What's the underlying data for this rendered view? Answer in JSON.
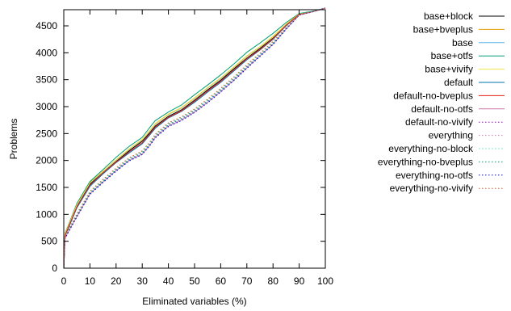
{
  "chart_data": {
    "type": "line",
    "xlabel": "Eliminated variables (%)",
    "ylabel": "Problems",
    "xlim": [
      0,
      100
    ],
    "ylim": [
      0,
      4800
    ],
    "xticks": [
      0,
      10,
      20,
      30,
      40,
      50,
      60,
      70,
      80,
      90,
      100
    ],
    "yticks": [
      0,
      500,
      1000,
      1500,
      2000,
      2500,
      3000,
      3500,
      4000,
      4500
    ],
    "grid": false,
    "legend_position": "outside-right",
    "series": [
      {
        "name": "base+block",
        "color": "#000000",
        "dash": "solid",
        "x": [
          0,
          0.5,
          2,
          5,
          10,
          15,
          20,
          25,
          30,
          33,
          35,
          40,
          45,
          50,
          55,
          60,
          65,
          70,
          75,
          80,
          85,
          90,
          95,
          100
        ],
        "y": [
          0,
          620,
          800,
          1150,
          1560,
          1780,
          1980,
          2180,
          2360,
          2520,
          2640,
          2820,
          2940,
          3120,
          3310,
          3490,
          3700,
          3900,
          4080,
          4280,
          4520,
          4720,
          4760,
          4830
        ]
      },
      {
        "name": "base+bveplus",
        "color": "#e69f00",
        "dash": "solid",
        "x": [
          0,
          0.5,
          2,
          5,
          10,
          15,
          20,
          25,
          30,
          33,
          35,
          40,
          45,
          50,
          55,
          60,
          65,
          70,
          75,
          80,
          85,
          90,
          95,
          100
        ],
        "y": [
          0,
          640,
          820,
          1180,
          1590,
          1800,
          2010,
          2210,
          2390,
          2560,
          2680,
          2860,
          2980,
          3160,
          3350,
          3530,
          3730,
          3940,
          4110,
          4300,
          4530,
          4720,
          4760,
          4830
        ]
      },
      {
        "name": "base",
        "color": "#56b4e9",
        "dash": "solid",
        "x": [
          0,
          0.5,
          2,
          5,
          10,
          15,
          20,
          25,
          30,
          33,
          35,
          40,
          45,
          50,
          55,
          60,
          65,
          70,
          75,
          80,
          85,
          90,
          95,
          100
        ],
        "y": [
          0,
          630,
          810,
          1170,
          1580,
          1790,
          2000,
          2200,
          2380,
          2550,
          2670,
          2850,
          2970,
          3150,
          3340,
          3520,
          3720,
          3930,
          4100,
          4290,
          4530,
          4720,
          4760,
          4830
        ]
      },
      {
        "name": "base+otfs",
        "color": "#009e73",
        "dash": "solid",
        "x": [
          0,
          0.5,
          2,
          5,
          10,
          15,
          20,
          25,
          30,
          33,
          35,
          40,
          45,
          50,
          55,
          60,
          65,
          70,
          75,
          80,
          85,
          90,
          95,
          100
        ],
        "y": [
          0,
          650,
          830,
          1200,
          1610,
          1830,
          2060,
          2260,
          2430,
          2620,
          2740,
          2900,
          3030,
          3220,
          3400,
          3590,
          3790,
          4010,
          4180,
          4360,
          4560,
          4730,
          4770,
          4830
        ]
      },
      {
        "name": "base+vivify",
        "color": "#f0e442",
        "dash": "solid",
        "x": [
          0,
          0.5,
          2,
          5,
          10,
          15,
          20,
          25,
          30,
          33,
          35,
          40,
          45,
          50,
          55,
          60,
          65,
          70,
          75,
          80,
          85,
          90,
          95,
          100
        ],
        "y": [
          0,
          635,
          815,
          1175,
          1585,
          1795,
          2005,
          2205,
          2385,
          2555,
          2675,
          2855,
          2975,
          3155,
          3345,
          3525,
          3725,
          3935,
          4105,
          4295,
          4530,
          4720,
          4760,
          4830
        ]
      },
      {
        "name": "default",
        "color": "#0072b2",
        "dash": "solid",
        "x": [
          0,
          0.5,
          2,
          5,
          10,
          15,
          20,
          25,
          30,
          33,
          35,
          40,
          45,
          50,
          55,
          60,
          65,
          70,
          75,
          80,
          85,
          90,
          95,
          100
        ],
        "y": [
          0,
          600,
          770,
          1120,
          1520,
          1750,
          1960,
          2140,
          2310,
          2480,
          2600,
          2790,
          2910,
          3080,
          3270,
          3450,
          3660,
          3870,
          4050,
          4250,
          4500,
          4710,
          4760,
          4830
        ]
      },
      {
        "name": "default-no-bveplus",
        "color": "#e51e10",
        "dash": "solid",
        "x": [
          0,
          0.5,
          2,
          5,
          10,
          15,
          20,
          25,
          30,
          33,
          35,
          40,
          45,
          50,
          55,
          60,
          65,
          70,
          75,
          80,
          85,
          90,
          95,
          100
        ],
        "y": [
          0,
          610,
          790,
          1140,
          1540,
          1770,
          1970,
          2160,
          2330,
          2500,
          2620,
          2800,
          2920,
          3100,
          3290,
          3470,
          3680,
          3890,
          4060,
          4260,
          4510,
          4710,
          4760,
          4830
        ]
      },
      {
        "name": "default-no-otfs",
        "color": "#cc79a7",
        "dash": "solid",
        "x": [
          0,
          0.5,
          2,
          5,
          10,
          15,
          20,
          25,
          30,
          33,
          35,
          40,
          45,
          50,
          55,
          60,
          65,
          70,
          75,
          80,
          85,
          90,
          95,
          100
        ],
        "y": [
          0,
          560,
          700,
          960,
          1380,
          1600,
          1810,
          2000,
          2120,
          2290,
          2430,
          2640,
          2750,
          2900,
          3080,
          3280,
          3490,
          3720,
          3940,
          4160,
          4440,
          4700,
          4760,
          4830
        ]
      },
      {
        "name": "default-no-vivify",
        "color": "#9400d3",
        "dash": "dotted",
        "x": [
          0,
          0.5,
          2,
          5,
          10,
          15,
          20,
          25,
          30,
          33,
          35,
          40,
          45,
          50,
          55,
          60,
          65,
          70,
          75,
          80,
          85,
          90,
          95,
          100
        ],
        "y": [
          0,
          570,
          710,
          980,
          1400,
          1620,
          1830,
          2020,
          2150,
          2320,
          2460,
          2670,
          2780,
          2930,
          3110,
          3310,
          3520,
          3750,
          3960,
          4180,
          4450,
          4700,
          4760,
          4830
        ]
      },
      {
        "name": "everything",
        "color": "#cc79a7",
        "dash": "dotted",
        "x": [
          0,
          0.5,
          2,
          5,
          10,
          15,
          20,
          25,
          30,
          33,
          35,
          40,
          45,
          50,
          55,
          60,
          65,
          70,
          75,
          80,
          85,
          90,
          95,
          100
        ],
        "y": [
          0,
          580,
          730,
          1000,
          1420,
          1640,
          1850,
          2040,
          2170,
          2340,
          2480,
          2690,
          2800,
          2950,
          3130,
          3330,
          3540,
          3770,
          3980,
          4200,
          4460,
          4700,
          4760,
          4830
        ]
      },
      {
        "name": "everything-no-block",
        "color": "#56e9b4",
        "dash": "dotted",
        "x": [
          0,
          0.5,
          2,
          5,
          10,
          15,
          20,
          25,
          30,
          33,
          35,
          40,
          45,
          50,
          55,
          60,
          65,
          70,
          75,
          80,
          85,
          90,
          95,
          100
        ],
        "y": [
          0,
          575,
          720,
          990,
          1410,
          1630,
          1840,
          2030,
          2160,
          2330,
          2470,
          2680,
          2790,
          2940,
          3120,
          3320,
          3530,
          3760,
          3970,
          4190,
          4455,
          4700,
          4760,
          4830
        ]
      },
      {
        "name": "everything-no-bveplus",
        "color": "#009e73",
        "dash": "dotted",
        "x": [
          0,
          0.5,
          2,
          5,
          10,
          15,
          20,
          25,
          30,
          33,
          35,
          40,
          45,
          50,
          55,
          60,
          65,
          70,
          75,
          80,
          85,
          90,
          95,
          100
        ],
        "y": [
          0,
          565,
          705,
          970,
          1390,
          1610,
          1820,
          2010,
          2140,
          2310,
          2450,
          2660,
          2770,
          2920,
          3100,
          3300,
          3510,
          3740,
          3950,
          4170,
          4445,
          4700,
          4760,
          4830
        ]
      },
      {
        "name": "everything-no-otfs",
        "color": "#0000ff",
        "dash": "dotted",
        "x": [
          0,
          0.5,
          2,
          5,
          10,
          15,
          20,
          25,
          30,
          33,
          35,
          40,
          45,
          50,
          55,
          60,
          65,
          70,
          75,
          80,
          85,
          90,
          95,
          100
        ],
        "y": [
          0,
          550,
          690,
          950,
          1370,
          1590,
          1800,
          1990,
          2110,
          2280,
          2420,
          2630,
          2740,
          2890,
          3070,
          3270,
          3480,
          3710,
          3930,
          4150,
          4435,
          4700,
          4760,
          4830
        ]
      },
      {
        "name": "everything-no-vivify",
        "color": "#d2691e",
        "dash": "dotted",
        "x": [
          0,
          0.5,
          2,
          5,
          10,
          15,
          20,
          25,
          30,
          33,
          35,
          40,
          45,
          50,
          55,
          60,
          65,
          70,
          75,
          80,
          85,
          90,
          95,
          100
        ],
        "y": [
          0,
          585,
          740,
          1010,
          1430,
          1650,
          1860,
          2050,
          2180,
          2350,
          2490,
          2700,
          2810,
          2960,
          3140,
          3340,
          3550,
          3780,
          3990,
          4210,
          4465,
          4700,
          4760,
          4830
        ]
      }
    ]
  }
}
